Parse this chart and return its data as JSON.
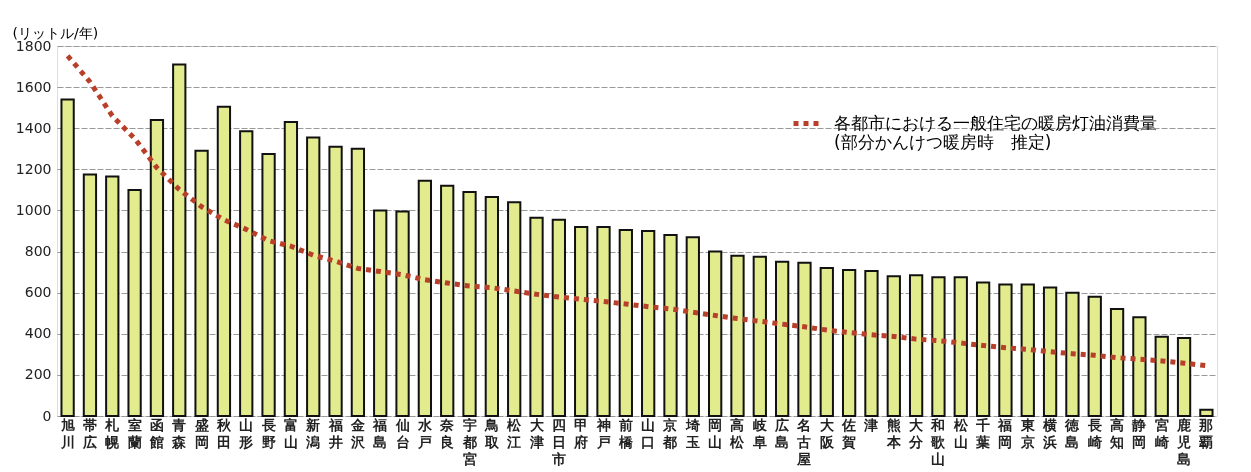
{
  "chart_data": {
    "type": "bar",
    "ylabel": "(リットル/年)",
    "categories": [
      "旭川",
      "帯広",
      "札幌",
      "室蘭",
      "函館",
      "青森",
      "盛岡",
      "秋田",
      "山形",
      "長野",
      "富山",
      "新潟",
      "福井",
      "金沢",
      "福島",
      "仙台",
      "水戸",
      "奈良",
      "宇都宮",
      "鳥取",
      "松江",
      "大津",
      "四日市",
      "甲府",
      "神戸",
      "前橋",
      "山口",
      "京都",
      "埼玉",
      "岡山",
      "高松",
      "岐阜",
      "広島",
      "名古屋",
      "大阪",
      "佐賀",
      "津",
      "熊本",
      "大分",
      "和歌山",
      "松山",
      "千葉",
      "福岡",
      "東京",
      "横浜",
      "徳島",
      "長崎",
      "高知",
      "静岡",
      "宮崎",
      "鹿児島",
      "那覇"
    ],
    "series": [
      {
        "color": "#e2ec8e",
        "values": [
          1540,
          1175,
          1165,
          1100,
          1440,
          1710,
          1290,
          1505,
          1385,
          1275,
          1430,
          1355,
          1310,
          1300,
          1000,
          995,
          1145,
          1120,
          1090,
          1065,
          1040,
          965,
          955,
          920,
          920,
          905,
          900,
          880,
          870,
          800,
          780,
          775,
          750,
          745,
          720,
          710,
          705,
          680,
          685,
          675,
          675,
          650,
          640,
          640,
          625,
          600,
          580,
          520,
          480,
          385,
          380,
          30
        ]
      },
      {
        "type": "line",
        "name": "各都市における一般住宅の暖房灯油消費量\n(部分かんけつ暖房時　推定)",
        "color": "#b8402a",
        "line_style": "dotted",
        "values": [
          1752,
          1626,
          1460,
          1350,
          1208,
          1102,
          1018,
          955,
          908,
          853,
          826,
          782,
          753,
          718,
          703,
          687,
          663,
          647,
          632,
          624,
          608,
          592,
          579,
          568,
          557,
          545,
          532,
          521,
          505,
          489,
          474,
          461,
          447,
          434,
          418,
          406,
          395,
          387,
          374,
          366,
          355,
          343,
          332,
          324,
          313,
          303,
          295,
          284,
          276,
          268,
          257,
          245
        ]
      }
    ],
    "ylim": [
      0,
      1800
    ],
    "yticks": [
      0,
      200,
      400,
      600,
      800,
      1000,
      1200,
      1400,
      1600,
      1800
    ],
    "grid": "y",
    "legend": "top right"
  }
}
